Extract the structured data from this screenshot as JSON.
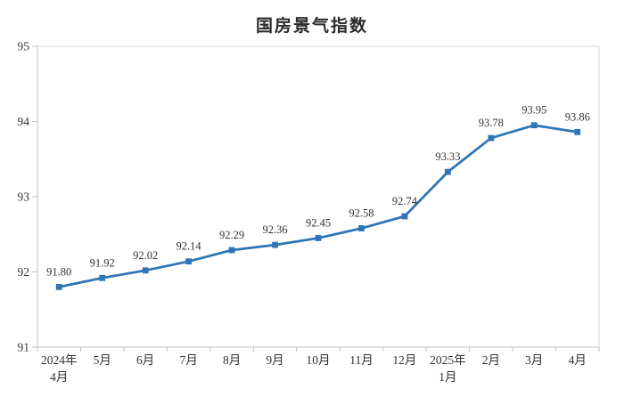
{
  "chart_data": {
    "type": "line",
    "title": "国房景气指数",
    "categories": [
      "2024年\n4月",
      "5月",
      "6月",
      "7月",
      "8月",
      "9月",
      "10月",
      "11月",
      "12月",
      "2025年\n1月",
      "2月",
      "3月",
      "4月"
    ],
    "values": [
      91.8,
      91.92,
      92.02,
      92.14,
      92.29,
      92.36,
      92.45,
      92.58,
      92.74,
      93.33,
      93.78,
      93.95,
      93.86
    ],
    "data_labels": [
      "91.80",
      "91.92",
      "92.02",
      "92.14",
      "92.29",
      "92.36",
      "92.45",
      "92.58",
      "92.74",
      "93.33",
      "93.78",
      "93.95",
      "93.86"
    ],
    "ylim": [
      91,
      95
    ],
    "yticks": [
      "91",
      "92",
      "93",
      "94",
      "95"
    ],
    "grid": false,
    "legend": "none",
    "colors": {
      "line": "#2E75B6",
      "marker": "#2E75B6",
      "label_text": "#333333",
      "axis_text": "#333333",
      "axis_line": "#BFBFBF",
      "plot_border": "#D9D9D9",
      "title_text": "#2B2B2B"
    }
  }
}
